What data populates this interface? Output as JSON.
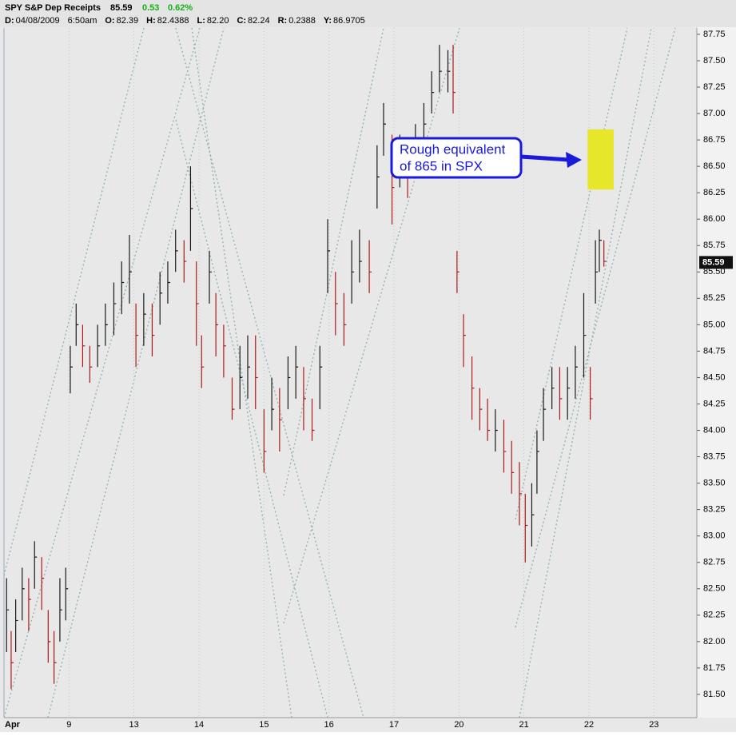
{
  "header": {
    "symbol": "SPY S&P Dep Receipts",
    "last": "85.59",
    "change": "0.53",
    "change_pct": "0.62%",
    "fields": [
      {
        "label": "D:",
        "value": "04/08/2009"
      },
      {
        "label": "",
        "value": "6:50am"
      },
      {
        "label": "O:",
        "value": "82.39"
      },
      {
        "label": "H:",
        "value": "82.4388"
      },
      {
        "label": "L:",
        "value": "82.20"
      },
      {
        "label": "C:",
        "value": "82.24"
      },
      {
        "label": "R:",
        "value": "0.2388"
      },
      {
        "label": "Y:",
        "value": "86.9705"
      }
    ]
  },
  "chart_data": {
    "type": "ohlc",
    "x": [
      0.04,
      0.11,
      0.18,
      0.28,
      0.38,
      0.47,
      0.58,
      0.68,
      0.77,
      0.86,
      0.95,
      1.02,
      1.11,
      1.21,
      1.32,
      1.44,
      1.56,
      1.69,
      1.81,
      1.93,
      2.03,
      2.15,
      2.28,
      2.4,
      2.52,
      2.64,
      2.77,
      2.87,
      2.96,
      3.04,
      3.16,
      3.26,
      3.38,
      3.51,
      3.63,
      3.75,
      3.87,
      4.0,
      4.12,
      4.24,
      4.37,
      4.49,
      4.61,
      4.74,
      4.86,
      4.98,
      5.1,
      5.23,
      5.35,
      5.47,
      5.62,
      5.74,
      5.84,
      5.97,
      6.09,
      6.21,
      6.33,
      6.46,
      6.58,
      6.7,
      6.83,
      6.91,
      6.97,
      7.07,
      7.2,
      7.32,
      7.44,
      7.56,
      7.69,
      7.81,
      7.93,
      8.02,
      8.12,
      8.2,
      8.3,
      8.43,
      8.55,
      8.67,
      8.79,
      8.92,
      9.02,
      9.1,
      9.16,
      9.23
    ],
    "high": [
      82.6,
      82.1,
      82.4,
      82.7,
      82.6,
      82.95,
      82.8,
      82.3,
      82.1,
      82.6,
      82.7,
      84.8,
      85.2,
      85.0,
      84.8,
      85.0,
      85.2,
      85.4,
      85.6,
      85.85,
      85.2,
      85.3,
      85.2,
      85.5,
      85.6,
      85.9,
      85.8,
      86.5,
      85.6,
      84.9,
      85.7,
      85.3,
      85.0,
      84.5,
      84.8,
      84.9,
      84.9,
      84.2,
      84.5,
      84.4,
      84.7,
      84.8,
      84.6,
      84.3,
      84.8,
      86.0,
      85.5,
      85.3,
      85.8,
      85.9,
      85.8,
      86.7,
      87.1,
      86.8,
      86.8,
      86.6,
      86.9,
      87.1,
      87.4,
      87.65,
      87.6,
      87.65,
      85.7,
      85.1,
      84.7,
      84.4,
      84.3,
      84.2,
      84.1,
      83.9,
      83.7,
      83.4,
      83.5,
      84.0,
      84.4,
      84.6,
      84.6,
      84.6,
      84.8,
      85.3,
      84.6,
      85.8,
      85.9,
      85.8
    ],
    "low": [
      81.9,
      81.55,
      81.9,
      82.2,
      82.1,
      82.5,
      82.3,
      81.8,
      81.6,
      82.0,
      82.2,
      84.35,
      84.8,
      84.6,
      84.45,
      84.6,
      84.8,
      84.9,
      85.1,
      85.2,
      84.6,
      84.8,
      84.7,
      85.0,
      85.2,
      85.5,
      85.4,
      85.7,
      84.8,
      84.4,
      85.2,
      84.7,
      84.5,
      84.1,
      84.2,
      84.3,
      84.2,
      83.6,
      84.0,
      83.8,
      84.2,
      84.3,
      84.0,
      83.9,
      84.2,
      85.3,
      84.9,
      84.8,
      85.2,
      85.4,
      85.3,
      86.1,
      86.6,
      85.95,
      86.3,
      86.2,
      86.5,
      86.7,
      87.0,
      87.2,
      87.2,
      87.0,
      85.3,
      84.6,
      84.1,
      84.0,
      83.9,
      83.8,
      83.6,
      83.4,
      83.1,
      82.75,
      82.9,
      83.4,
      83.9,
      84.2,
      84.1,
      84.1,
      84.3,
      84.5,
      84.1,
      85.2,
      85.5,
      85.55
    ],
    "close": [
      82.3,
      81.8,
      82.2,
      82.5,
      82.4,
      82.8,
      82.6,
      82.0,
      81.8,
      82.3,
      82.5,
      84.6,
      85.0,
      84.8,
      84.6,
      84.8,
      85.0,
      85.2,
      85.4,
      85.5,
      84.9,
      85.1,
      84.9,
      85.3,
      85.4,
      85.7,
      85.6,
      86.1,
      85.2,
      84.6,
      85.5,
      85.0,
      84.8,
      84.2,
      84.5,
      84.6,
      84.5,
      83.8,
      84.2,
      84.1,
      84.5,
      84.6,
      84.3,
      84.0,
      84.6,
      85.7,
      85.2,
      85.0,
      85.5,
      85.6,
      85.5,
      86.4,
      86.9,
      86.3,
      86.5,
      86.4,
      86.7,
      86.9,
      87.2,
      87.4,
      87.4,
      87.2,
      85.5,
      84.9,
      84.4,
      84.2,
      84.0,
      84.0,
      83.8,
      83.6,
      83.4,
      83.1,
      83.2,
      83.8,
      84.2,
      84.4,
      84.3,
      84.4,
      84.6,
      84.9,
      84.3,
      85.5,
      85.8,
      85.6
    ],
    "up_color": "#1a1a1a",
    "down_color": "#b01818",
    "xlim": [
      0,
      10.66
    ],
    "ylim": [
      81.28,
      87.81
    ],
    "xticks": [
      {
        "value": 0,
        "label": "Apr"
      },
      {
        "value": 1,
        "label": "9"
      },
      {
        "value": 2,
        "label": "13"
      },
      {
        "value": 3,
        "label": "14"
      },
      {
        "value": 4,
        "label": "15"
      },
      {
        "value": 5,
        "label": "16"
      },
      {
        "value": 6,
        "label": "17"
      },
      {
        "value": 7,
        "label": "20"
      },
      {
        "value": 8,
        "label": "21"
      },
      {
        "value": 9,
        "label": "22"
      },
      {
        "value": 10,
        "label": "23"
      }
    ],
    "yticks": [
      {
        "value": 81.5,
        "label": "81.50"
      },
      81.75,
      {
        "value": 82,
        "label": "82.00"
      },
      82.25,
      {
        "value": 82.5,
        "label": "82.50"
      },
      82.75,
      {
        "value": 83,
        "label": "83.00"
      },
      83.25,
      {
        "value": 83.5,
        "label": "83.50"
      },
      83.75,
      {
        "value": 84,
        "label": "84.00"
      },
      84.25,
      {
        "value": 84.5,
        "label": "84.50"
      },
      84.75,
      {
        "value": 85,
        "label": "85.00"
      },
      85.25,
      {
        "value": 85.5,
        "label": "85.50"
      },
      85.75,
      {
        "value": 86,
        "label": "86.00"
      },
      86.25,
      {
        "value": 86.5,
        "label": "86.50"
      },
      86.75,
      {
        "value": 87,
        "label": "87.00"
      },
      87.25,
      {
        "value": 87.5,
        "label": "87.50"
      },
      87.75
    ],
    "last_price": 85.59,
    "highlight": {
      "x": [
        8.98,
        9.38
      ],
      "y": [
        86.28,
        86.85
      ],
      "color": "#e6e62a"
    },
    "annotation": [
      "Rough equivalent",
      "of 865 in SPX"
    ]
  }
}
